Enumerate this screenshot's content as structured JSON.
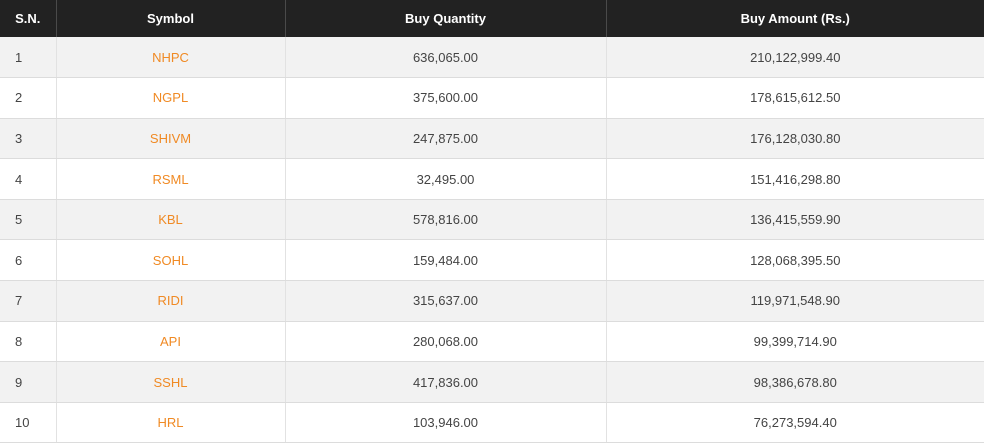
{
  "colors": {
    "header_bg": "#222222",
    "header_text": "#ffffff",
    "symbol_link": "#f08a24",
    "row_stripe": "#f2f2f2"
  },
  "headers": {
    "sn": "S.N.",
    "symbol": "Symbol",
    "buy_quantity": "Buy Quantity",
    "buy_amount": "Buy Amount (Rs.)"
  },
  "rows": [
    {
      "sn": "1",
      "symbol": "NHPC",
      "buy_quantity": "636,065.00",
      "buy_amount": "210,122,999.40"
    },
    {
      "sn": "2",
      "symbol": "NGPL",
      "buy_quantity": "375,600.00",
      "buy_amount": "178,615,612.50"
    },
    {
      "sn": "3",
      "symbol": "SHIVM",
      "buy_quantity": "247,875.00",
      "buy_amount": "176,128,030.80"
    },
    {
      "sn": "4",
      "symbol": "RSML",
      "buy_quantity": "32,495.00",
      "buy_amount": "151,416,298.80"
    },
    {
      "sn": "5",
      "symbol": "KBL",
      "buy_quantity": "578,816.00",
      "buy_amount": "136,415,559.90"
    },
    {
      "sn": "6",
      "symbol": "SOHL",
      "buy_quantity": "159,484.00",
      "buy_amount": "128,068,395.50"
    },
    {
      "sn": "7",
      "symbol": "RIDI",
      "buy_quantity": "315,637.00",
      "buy_amount": "119,971,548.90"
    },
    {
      "sn": "8",
      "symbol": "API",
      "buy_quantity": "280,068.00",
      "buy_amount": "99,399,714.90"
    },
    {
      "sn": "9",
      "symbol": "SSHL",
      "buy_quantity": "417,836.00",
      "buy_amount": "98,386,678.80"
    },
    {
      "sn": "10",
      "symbol": "HRL",
      "buy_quantity": "103,946.00",
      "buy_amount": "76,273,594.40"
    }
  ]
}
